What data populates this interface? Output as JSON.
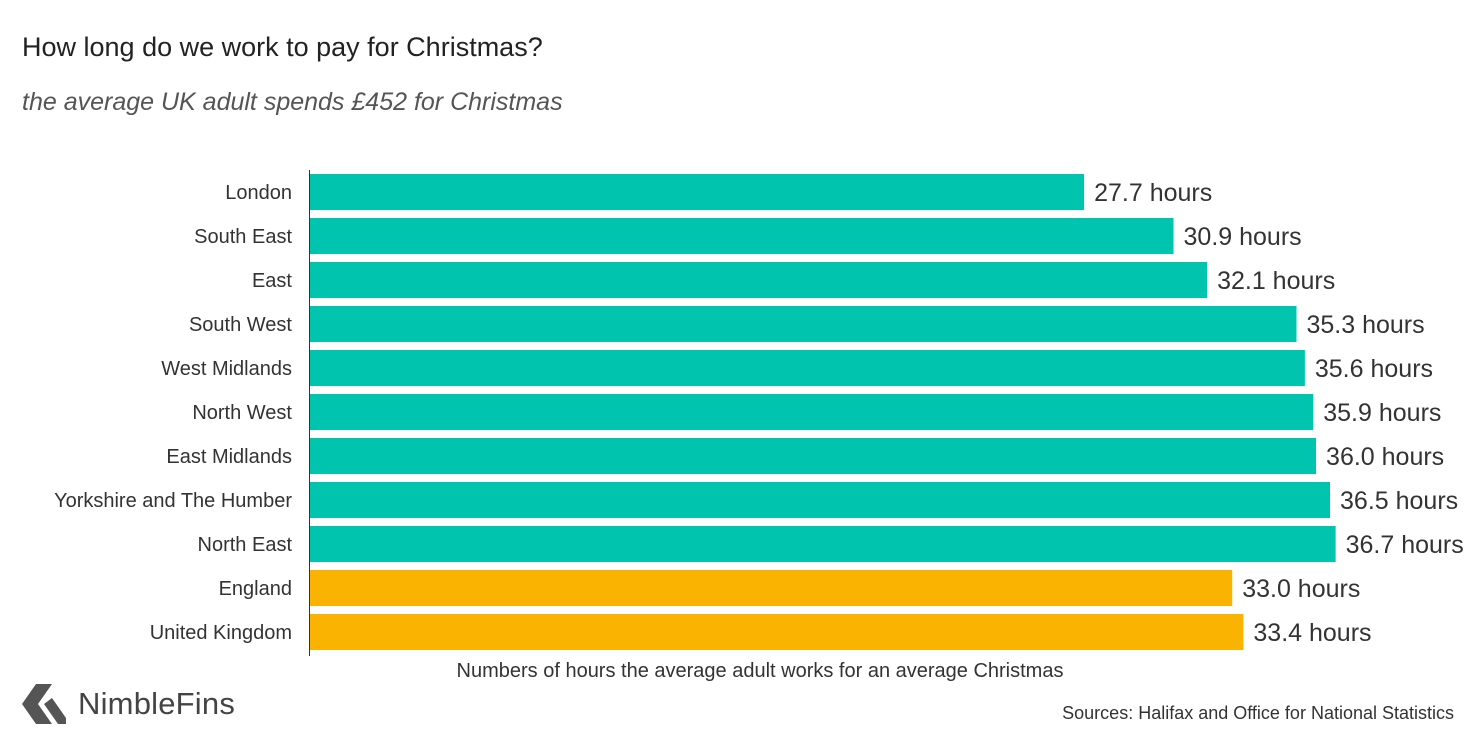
{
  "header": {
    "title": "How long do we work to pay for Christmas?",
    "subtitle": "the average UK adult spends £452 for Christmas"
  },
  "brand": {
    "name": "NimbleFins",
    "icon": "nimblefins-logo-icon"
  },
  "footer": {
    "source": "Sources: Halifax and Office for National Statistics"
  },
  "colors": {
    "region_bar": "#00C4AE",
    "national_bar": "#F9B300"
  },
  "chart_data": {
    "type": "bar",
    "orientation": "horizontal",
    "xlabel": "Numbers of hours the average adult works for an average Christmas",
    "value_suffix": " hours",
    "xlim": [
      0,
      37
    ],
    "grid": false,
    "categories": [
      "London",
      "South East",
      "East",
      "South West",
      "West Midlands",
      "North West",
      "East Midlands",
      "Yorkshire and The Humber",
      "North East",
      "England",
      "United Kingdom"
    ],
    "values": [
      27.7,
      30.9,
      32.1,
      35.3,
      35.6,
      35.9,
      36.0,
      36.5,
      36.7,
      33.0,
      33.4
    ],
    "labels": [
      "27.7 hours",
      "30.9 hours",
      "32.1 hours",
      "35.3 hours",
      "35.6 hours",
      "35.9 hours",
      "36.0 hours",
      "36.5 hours",
      "36.7 hours",
      "33.0 hours",
      "33.4 hours"
    ],
    "groups": [
      "region",
      "region",
      "region",
      "region",
      "region",
      "region",
      "region",
      "region",
      "region",
      "national",
      "national"
    ]
  }
}
